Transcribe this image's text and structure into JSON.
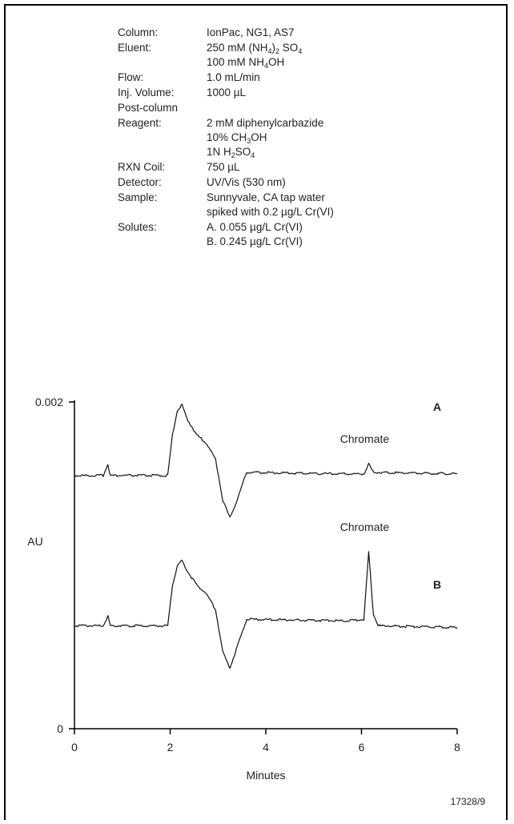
{
  "conditions": [
    {
      "label": "Column:",
      "lines": [
        [
          {
            "t": "IonPac, NG1, AS7"
          }
        ]
      ]
    },
    {
      "label": "Eluent:",
      "lines": [
        [
          {
            "t": "250 mM (NH"
          },
          {
            "s": "4"
          },
          {
            "t": ")"
          },
          {
            "s": "2"
          },
          {
            "t": "  SO"
          },
          {
            "s": "4"
          }
        ],
        [
          {
            "t": "100 mM NH"
          },
          {
            "s": "4"
          },
          {
            "t": "OH"
          }
        ]
      ]
    },
    {
      "label": "Flow:",
      "lines": [
        [
          {
            "t": "1.0 mL/min"
          }
        ]
      ]
    },
    {
      "label": "Inj. Volume:",
      "lines": [
        [
          {
            "t": "1000 µL"
          }
        ]
      ]
    },
    {
      "label": "Post-column",
      "lines": [
        [
          {
            "t": ""
          }
        ]
      ]
    },
    {
      "label": "Reagent:",
      "lines": [
        [
          {
            "t": "2 mM diphenylcarbazide"
          }
        ],
        [
          {
            "t": "10% CH"
          },
          {
            "s": "3"
          },
          {
            "t": "OH"
          }
        ],
        [
          {
            "t": "1N H"
          },
          {
            "s": "2"
          },
          {
            "t": "SO"
          },
          {
            "s": "4"
          }
        ]
      ]
    },
    {
      "label": "RXN Coil:",
      "lines": [
        [
          {
            "t": "750 µL"
          }
        ]
      ]
    },
    {
      "label": "Detector:",
      "lines": [
        [
          {
            "t": "UV/Vis (530 nm)"
          }
        ]
      ]
    },
    {
      "label": "Sample:",
      "lines": [
        [
          {
            "t": "Sunnyvale, CA tap water"
          }
        ],
        [
          {
            "t": "spiked with 0.2 µg/L Cr(VI)"
          }
        ]
      ]
    },
    {
      "label": "Solutes:",
      "lines": [
        [
          {
            "t": "A. 0.055 µg/L Cr(VI)"
          }
        ],
        [
          {
            "t": "B. 0.245 µg/L Cr(VI)"
          }
        ]
      ]
    }
  ],
  "chart_data": {
    "type": "line",
    "xlabel": "Minutes",
    "ylabel": "AU",
    "xlim": [
      0,
      8
    ],
    "ylim": [
      0,
      0.002
    ],
    "x_ticks": [
      0,
      2,
      4,
      6,
      8
    ],
    "y_ticks": [
      0,
      0.002
    ],
    "y_tick_labels": [
      "0",
      "0.002"
    ],
    "grid": false,
    "series": [
      {
        "name": "A",
        "peak_label": "Chromate",
        "peak_label_at": [
          6.2,
          0.00175
        ],
        "points": [
          [
            0,
            0.00155
          ],
          [
            0.6,
            0.00155
          ],
          [
            0.7,
            0.00162
          ],
          [
            0.75,
            0.00155
          ],
          [
            1.95,
            0.00155
          ],
          [
            2.05,
            0.0018
          ],
          [
            2.15,
            0.00195
          ],
          [
            2.25,
            0.00198
          ],
          [
            2.35,
            0.0019
          ],
          [
            2.55,
            0.0018
          ],
          [
            2.75,
            0.00175
          ],
          [
            2.95,
            0.00165
          ],
          [
            3.1,
            0.0014
          ],
          [
            3.25,
            0.00129
          ],
          [
            3.4,
            0.0014
          ],
          [
            3.6,
            0.00157
          ],
          [
            5.5,
            0.00156
          ],
          [
            6.05,
            0.00156
          ],
          [
            6.15,
            0.00162
          ],
          [
            6.25,
            0.00157
          ],
          [
            8,
            0.00156
          ]
        ]
      },
      {
        "name": "B",
        "peak_label": "Chromate",
        "peak_label_at": [
          6.2,
          0.00121
        ],
        "points": [
          [
            0,
            0.00063
          ],
          [
            0.6,
            0.00063
          ],
          [
            0.7,
            0.00069
          ],
          [
            0.75,
            0.00063
          ],
          [
            1.95,
            0.00063
          ],
          [
            2.05,
            0.00088
          ],
          [
            2.15,
            0.001
          ],
          [
            2.25,
            0.00103
          ],
          [
            2.35,
            0.00097
          ],
          [
            2.55,
            0.00088
          ],
          [
            2.75,
            0.00083
          ],
          [
            2.95,
            0.00073
          ],
          [
            3.1,
            0.00047
          ],
          [
            3.25,
            0.00037
          ],
          [
            3.4,
            0.0005
          ],
          [
            3.6,
            0.00067
          ],
          [
            5.7,
            0.00066
          ],
          [
            6.05,
            0.00067
          ],
          [
            6.15,
            0.00108
          ],
          [
            6.25,
            0.0007
          ],
          [
            6.35,
            0.00063
          ],
          [
            8,
            0.00062
          ]
        ]
      }
    ]
  },
  "figure_id": "17328/9"
}
